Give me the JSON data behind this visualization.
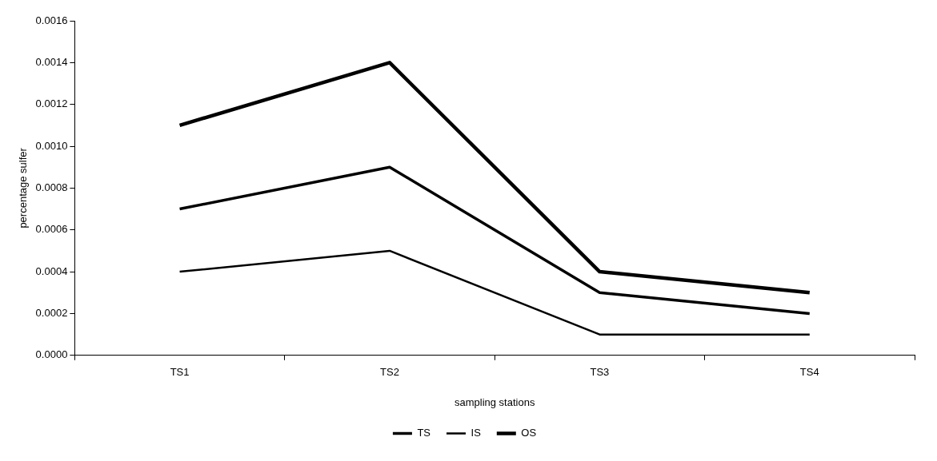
{
  "chart_data": {
    "type": "line",
    "xlabel": "sampling stations",
    "ylabel": "percentage sulfer",
    "categories": [
      "TS1",
      "TS2",
      "TS3",
      "TS4"
    ],
    "series": [
      {
        "name": "TS",
        "color": "#000000",
        "values": [
          0.0007,
          0.0009,
          0.0003,
          0.0002
        ]
      },
      {
        "name": "IS",
        "color": "#000000",
        "values": [
          0.0004,
          0.0005,
          0.0001,
          0.0001
        ]
      },
      {
        "name": "OS",
        "color": "#000000",
        "values": [
          0.0011,
          0.0014,
          0.0004,
          0.0003
        ]
      }
    ],
    "ylim": [
      0,
      0.0016
    ],
    "yticks": [
      {
        "value": 0,
        "label": "0.0000"
      },
      {
        "value": 0.0002,
        "label": "0.0002"
      },
      {
        "value": 0.0004,
        "label": "0.0004"
      },
      {
        "value": 0.0006,
        "label": "0.0006"
      },
      {
        "value": 0.0008,
        "label": "0.0008"
      },
      {
        "value": 0.001,
        "label": "0.0010"
      },
      {
        "value": 0.0012,
        "label": "0.0012"
      },
      {
        "value": 0.0014,
        "label": "0.0014"
      },
      {
        "value": 0.0016,
        "label": "0.0016"
      }
    ],
    "grid": false,
    "legend": "bottom",
    "marker": "none",
    "line_style": "solid"
  }
}
